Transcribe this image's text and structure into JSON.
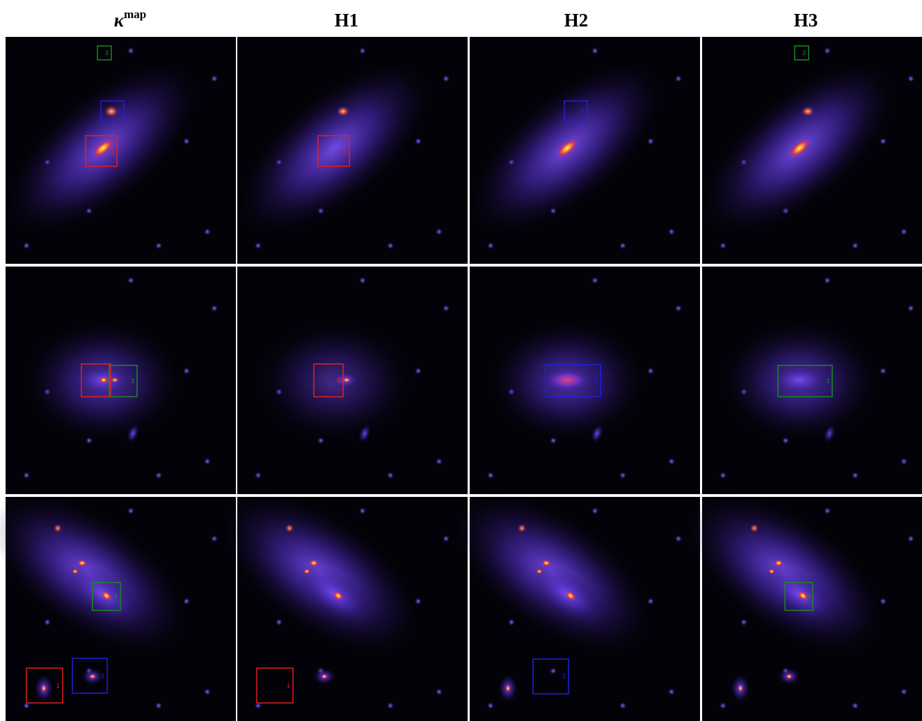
{
  "header": {
    "columns": [
      {
        "text": "κ",
        "sup": "map"
      },
      {
        "text": "H1"
      },
      {
        "text": "H2"
      },
      {
        "text": "H3"
      }
    ]
  },
  "panels": [
    [
      {
        "boxes": [
          {
            "label": "3"
          },
          {
            "label": "2"
          },
          {
            "label": "1"
          }
        ]
      },
      {
        "boxes": [
          {
            "label": "1"
          }
        ]
      },
      {
        "boxes": [
          {
            "label": "2"
          }
        ]
      },
      {
        "boxes": [
          {
            "label": "3"
          }
        ]
      }
    ],
    [
      {
        "boxes": [
          {
            "label": "1"
          },
          {
            "label": "3"
          }
        ]
      },
      {
        "boxes": [
          {
            "label": "1"
          }
        ]
      },
      {
        "boxes": [
          {
            "label": "2"
          }
        ]
      },
      {
        "boxes": [
          {
            "label": "3"
          }
        ]
      }
    ],
    [
      {
        "boxes": [
          {
            "label": "3"
          },
          {
            "label": "2"
          },
          {
            "label": "1"
          }
        ]
      },
      {
        "boxes": [
          {
            "label": "1"
          }
        ]
      },
      {
        "boxes": [
          {
            "label": "2"
          }
        ]
      },
      {
        "boxes": [
          {
            "label": "3"
          }
        ]
      }
    ]
  ]
}
